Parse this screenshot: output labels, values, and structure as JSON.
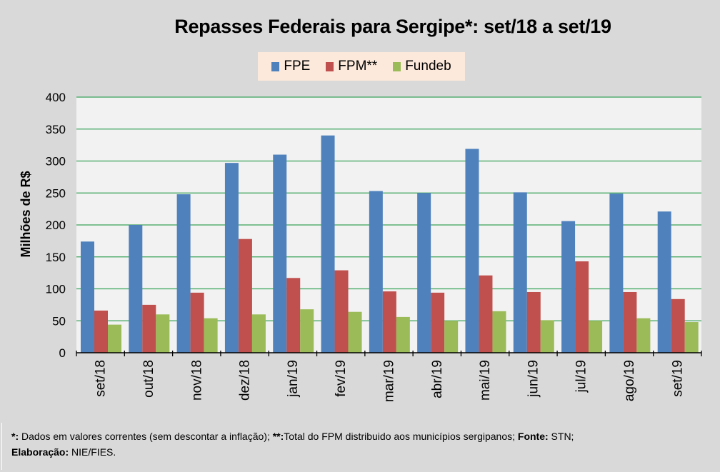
{
  "chart_data": {
    "type": "bar",
    "title": "Repasses Federais para Sergipe*: set/18 a set/19",
    "xlabel": "",
    "ylabel": "Milhões de R$",
    "ylim": [
      0,
      400
    ],
    "yticks": [
      0,
      50,
      100,
      150,
      200,
      250,
      300,
      350,
      400
    ],
    "grid": true,
    "legend_position": "top-center",
    "categories": [
      "set/18",
      "out/18",
      "nov/18",
      "dez/18",
      "jan/19",
      "fev/19",
      "mar/19",
      "abr/19",
      "mai/19",
      "jun/19",
      "jul/19",
      "ago/19",
      "set/19"
    ],
    "series": [
      {
        "name": "FPE",
        "color": "#4f81bd",
        "values": [
          174,
          200,
          248,
          297,
          310,
          340,
          253,
          250,
          319,
          251,
          206,
          249,
          221
        ]
      },
      {
        "name": "FPM**",
        "color": "#c0504d",
        "values": [
          66,
          75,
          94,
          178,
          117,
          129,
          96,
          94,
          121,
          95,
          143,
          95,
          84
        ]
      },
      {
        "name": "Fundeb",
        "color": "#9bbb59",
        "values": [
          44,
          60,
          54,
          60,
          68,
          64,
          56,
          50,
          65,
          51,
          50,
          54,
          48
        ]
      }
    ]
  },
  "footer": {
    "line1": [
      {
        "text": "*:",
        "bold": true
      },
      {
        "text": " Dados em valores correntes (sem descontar a inflação); ",
        "bold": false
      },
      {
        "text": "**:",
        "bold": true
      },
      {
        "text": "Total  do FPM distribuido aos municípios sergipanos; ",
        "bold": false
      },
      {
        "text": "Fonte:",
        "bold": true
      },
      {
        "text": " STN;",
        "bold": false
      }
    ],
    "line2": [
      {
        "text": "Elaboração:",
        "bold": true
      },
      {
        "text": " NIE/FIES.",
        "bold": false
      }
    ]
  },
  "colors": {
    "plot_bg": "#f2f2f2",
    "gridline": "#3aa35a",
    "page_bg": "#d9d9d9",
    "legend_bg": "#fce9db"
  }
}
